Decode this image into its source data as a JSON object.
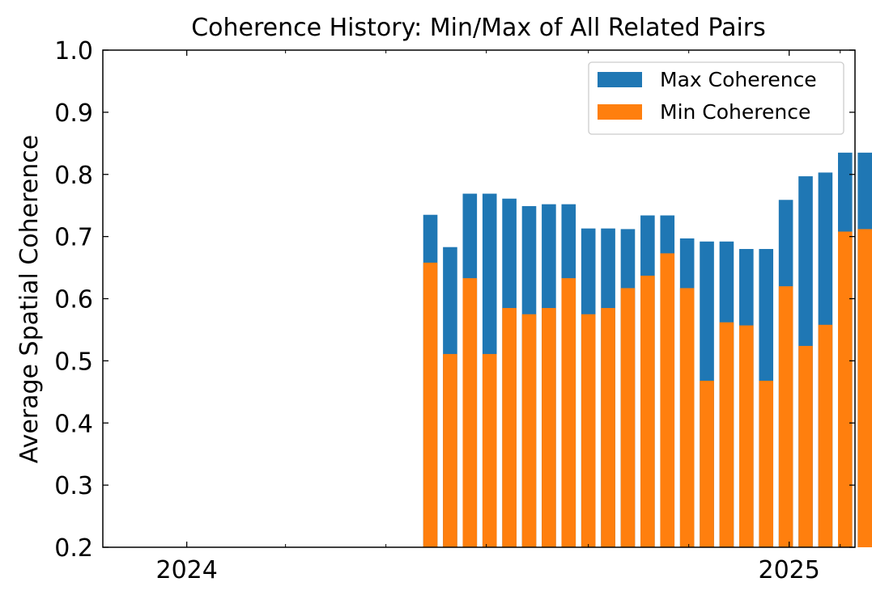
{
  "chart_data": {
    "type": "bar",
    "title": "Coherence History: Min/Max of All Related Pairs",
    "xlabel": "",
    "ylabel": "Average Spatial Coherence",
    "ylim": [
      0.2,
      1.0
    ],
    "xlim": [
      "2023-11-11",
      "2025-02-10"
    ],
    "yticks": [
      "0.2",
      "0.3",
      "0.4",
      "0.5",
      "0.6",
      "0.7",
      "0.8",
      "0.9",
      "1.0"
    ],
    "xticks": [
      {
        "label": "2024",
        "date": "2024-01-01"
      },
      {
        "label": "2025",
        "date": "2025-01-01"
      }
    ],
    "minor_xtick_dates": [
      "2024-03-01",
      "2024-05-01",
      "2024-07-01",
      "2024-09-01",
      "2024-11-01",
      "2025-02-01"
    ],
    "legend_position": "top-right",
    "grid": false,
    "x": [
      "2024-05-28",
      "2024-06-09",
      "2024-06-21",
      "2024-07-03",
      "2024-07-15",
      "2024-07-27",
      "2024-08-08",
      "2024-08-20",
      "2024-09-01",
      "2024-09-13",
      "2024-09-25",
      "2024-10-07",
      "2024-10-19",
      "2024-10-31",
      "2024-11-12",
      "2024-11-24",
      "2024-12-06",
      "2024-12-18",
      "2024-12-30",
      "2025-01-11",
      "2025-01-23",
      "2025-02-04",
      "2025-02-16"
    ],
    "series": [
      {
        "name": "Max Coherence",
        "color": "#1f77b4",
        "values": [
          0.735,
          0.683,
          0.769,
          0.769,
          0.761,
          0.749,
          0.752,
          0.752,
          0.713,
          0.713,
          0.712,
          0.734,
          0.734,
          0.697,
          0.692,
          0.692,
          0.68,
          0.68,
          0.759,
          0.797,
          0.803,
          0.835,
          0.835
        ]
      },
      {
        "name": "Min Coherence",
        "color": "#ff7f0e",
        "values": [
          0.658,
          0.511,
          0.633,
          0.511,
          0.585,
          0.575,
          0.585,
          0.633,
          0.575,
          0.585,
          0.617,
          0.637,
          0.673,
          0.617,
          0.468,
          0.562,
          0.557,
          0.468,
          0.62,
          0.524,
          0.558,
          0.708,
          0.712
        ]
      }
    ]
  }
}
